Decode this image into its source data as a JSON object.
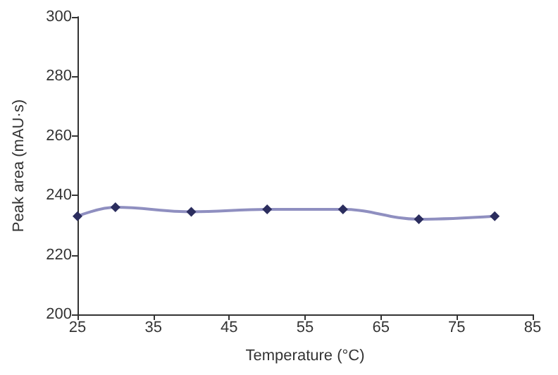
{
  "chart_data": {
    "type": "line",
    "xlabel": "Temperature (°C)",
    "ylabel": "Peak area (mAU·s)",
    "x": [
      25,
      30,
      40,
      50,
      60,
      70,
      80
    ],
    "series": [
      {
        "color": "#2b2d5e",
        "values": [
          233,
          236,
          234.5,
          235.3,
          235.3,
          232,
          233
        ]
      }
    ],
    "xlim": [
      25,
      85
    ],
    "xticks": [
      25,
      35,
      45,
      55,
      65,
      75,
      85
    ],
    "ylim": [
      200,
      300
    ],
    "yticks": [
      200,
      220,
      240,
      260,
      280,
      300
    ],
    "grid": false,
    "marker": "diamond",
    "line_style": "solid"
  }
}
